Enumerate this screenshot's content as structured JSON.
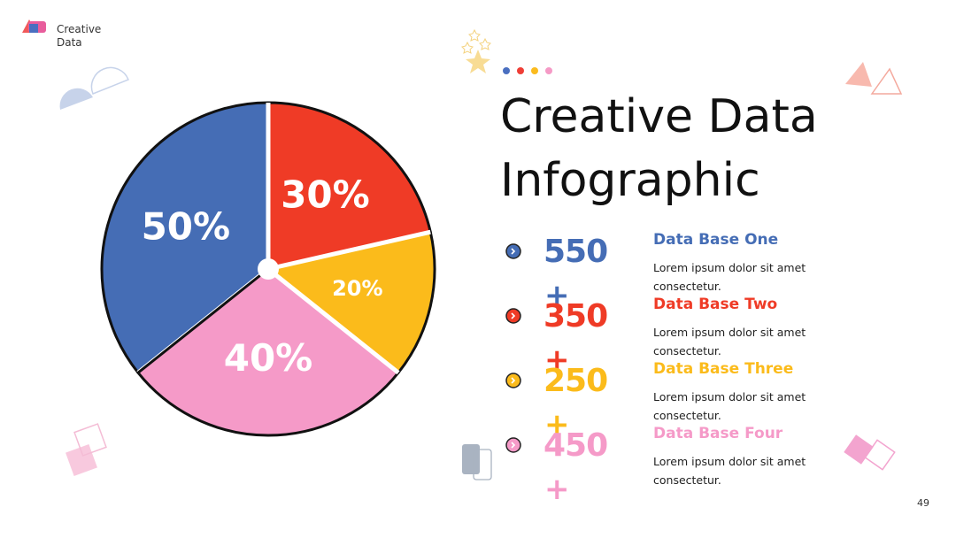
{
  "brand": "Creative Data",
  "page_number": "49",
  "chart_data": {
    "type": "pie",
    "title": "Creative Data Infographic",
    "categories": [
      "Data Base One",
      "Data Base Two",
      "Data Base Three",
      "Data Base Four"
    ],
    "values": [
      50,
      30,
      20,
      40
    ],
    "value_labels": [
      "50%",
      "30%",
      "20%",
      "40%"
    ],
    "colors": [
      "#456db5",
      "#ef3b26",
      "#fbbb1b",
      "#f59ac8"
    ]
  },
  "stats": [
    {
      "number": 550,
      "suffix": "+",
      "text": "Lorem ipsum dolor sit amet consectetur."
    },
    {
      "number": 350,
      "suffix": "+",
      "text": "Lorem ipsum dolor sit amet consectetur."
    },
    {
      "number": 250,
      "suffix": "+",
      "text": "Lorem ipsum dolor sit amet consectetur."
    },
    {
      "number": 450,
      "suffix": "+",
      "text": "Lorem ipsum dolor sit amet consectetur."
    }
  ]
}
